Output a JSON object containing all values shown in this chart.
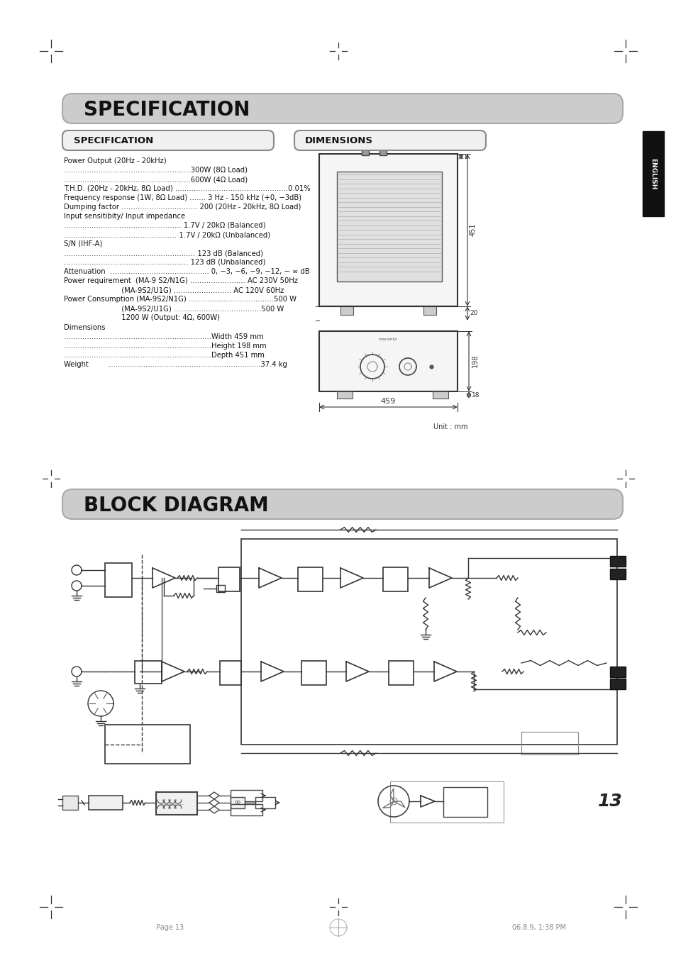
{
  "page_bg": "#ffffff",
  "page_width": 9.54,
  "page_height": 13.51,
  "main_title": "SPECIFICATION",
  "spec_title": "SPECIFICATION",
  "dim_title": "DIMENSIONS",
  "block_title": "BLOCK DIAGRAM",
  "unit_label": "Unit : mm",
  "page_number": "13",
  "footer_left": "Page 13",
  "footer_right": "06.8.9, 1:38 PM"
}
